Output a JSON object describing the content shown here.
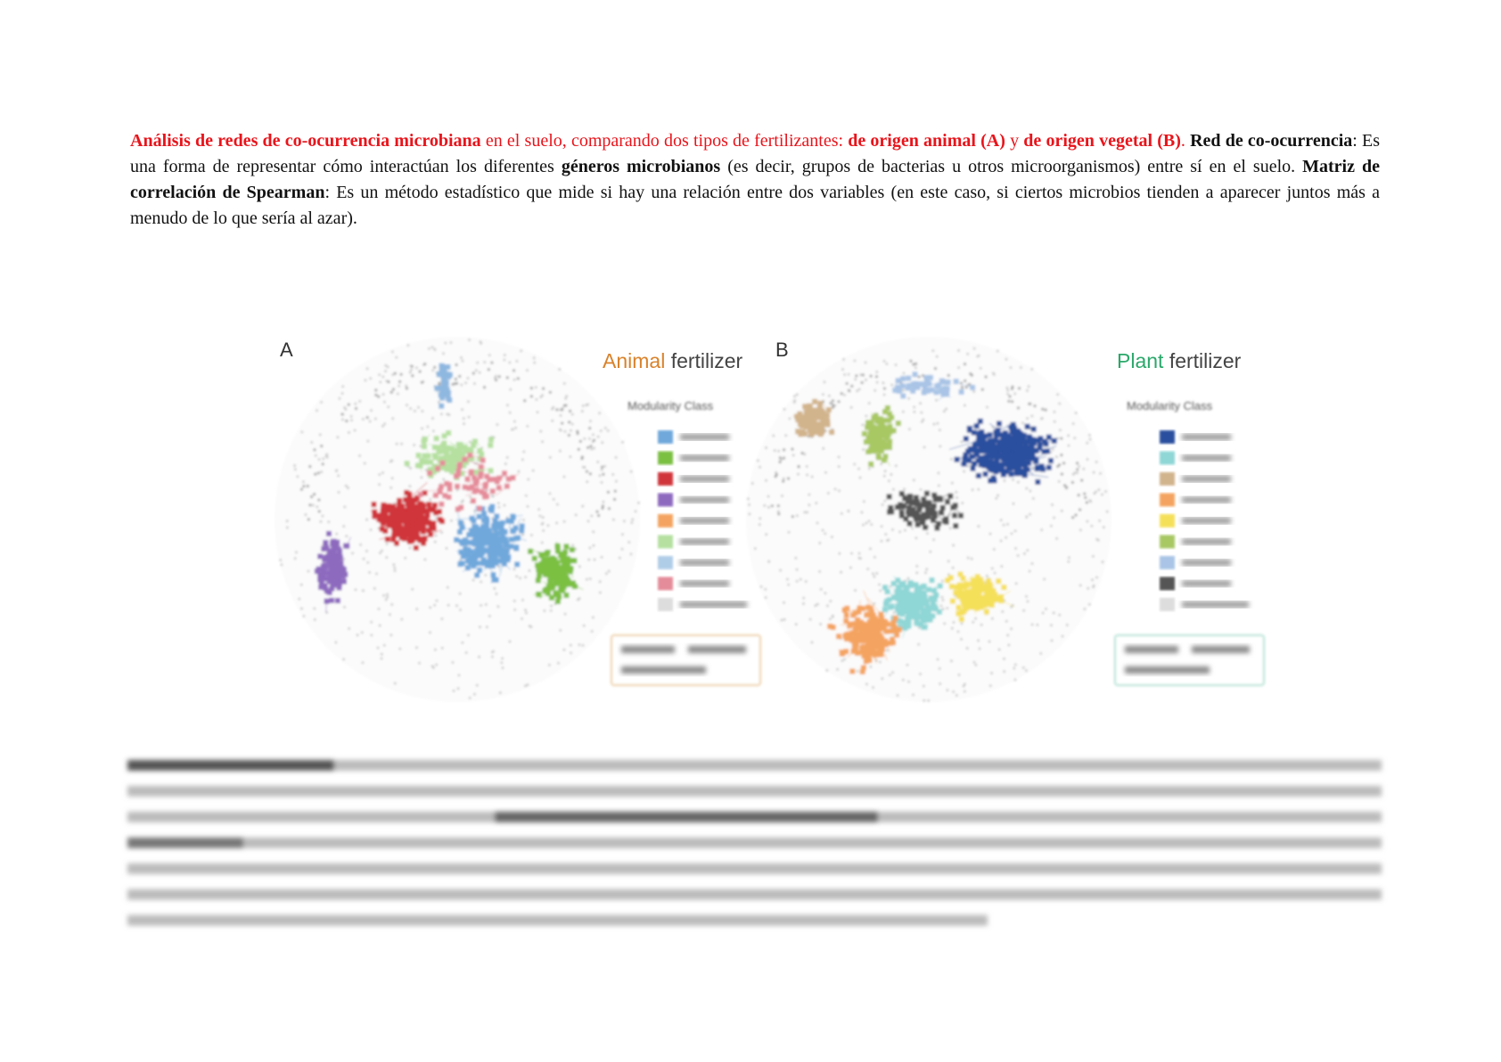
{
  "paragraph": {
    "segments": [
      "Análisis de redes de co-ocurrencia microbiana",
      " en el suelo, comparando dos tipos de fertilizantes: ",
      "de origen animal (A)",
      " y ",
      "de origen vegetal (B)",
      ". ",
      "Red de co-ocurrencia",
      ": Es una forma de representar cómo interactúan los diferentes ",
      "géneros microbianos",
      " (es decir, grupos de bacterias u otros microorganismos) entre sí en el suelo. ",
      "Matriz de correlación de Spearman",
      ": Es un método estadístico que mide si hay una relación entre dos variables (en este caso, si ciertos microbios tienden a aparecer juntos más a menudo de lo que sería al azar)."
    ]
  },
  "figure": {
    "panels": [
      {
        "letter": "A",
        "title_colored": "Animal",
        "title_rest": "fertilizer",
        "legend_title": "Modularity Class"
      },
      {
        "letter": "B",
        "title_colored": "Plant",
        "title_rest": "fertilizer",
        "legend_title": "Modularity Class"
      }
    ]
  }
}
